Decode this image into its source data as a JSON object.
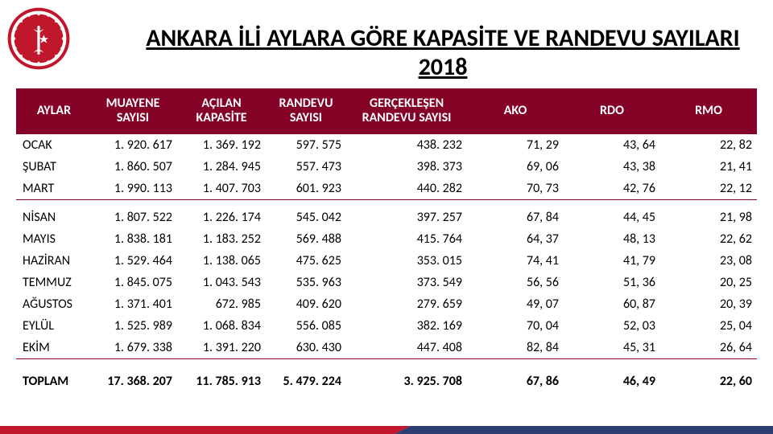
{
  "meta": {
    "title": "ANKARA İLİ AYLARA GÖRE KAPASİTE VE RANDEVU SAYILARI 2018",
    "accent_color": "#840226",
    "bar_left_color": "#c0172d",
    "bar_right_color": "#2d3e73",
    "text_color": "#000000",
    "background_color": "#ffffff",
    "title_fontsize": 30,
    "header_fontsize": 16,
    "cell_fontsize": 16
  },
  "table": {
    "headers": [
      "AYLAR",
      "MUAYENE SAYISI",
      "AÇILAN KAPASİTE",
      "RANDEVU SAYISI",
      "GERÇEKLEŞEN RANDEVU SAYISI",
      "AKO",
      "RDO",
      "RMO"
    ],
    "header_align": [
      "center",
      "center",
      "center",
      "center",
      "center",
      "center",
      "center",
      "center"
    ],
    "col_align": [
      "left",
      "right",
      "right",
      "right",
      "right",
      "right",
      "right",
      "right"
    ],
    "group1": [
      [
        "OCAK",
        "1. 920. 617",
        "1. 369. 192",
        "597. 575",
        "438. 232",
        "71, 29",
        "43, 64",
        "22, 82"
      ],
      [
        "ŞUBAT",
        "1. 860. 507",
        "1. 284. 945",
        "557. 473",
        "398. 373",
        "69, 06",
        "43, 38",
        "21, 41"
      ],
      [
        "MART",
        "1. 990. 113",
        "1. 407. 703",
        "601. 923",
        "440. 282",
        "70, 73",
        "42, 76",
        "22, 12"
      ]
    ],
    "group2": [
      [
        "NİSAN",
        "1. 807. 522",
        "1. 226. 174",
        "545. 042",
        "397. 257",
        "67, 84",
        "44, 45",
        "21, 98"
      ],
      [
        "MAYIS",
        "1. 838. 181",
        "1. 183. 252",
        "569. 488",
        "415. 764",
        "64, 37",
        "48, 13",
        "22, 62"
      ],
      [
        "HAZİRAN",
        "1. 529. 464",
        "1. 138. 065",
        "475. 625",
        "353. 015",
        "74, 41",
        "41, 79",
        "23, 08"
      ],
      [
        "TEMMUZ",
        "1. 845. 075",
        "1. 043. 543",
        "535. 963",
        "373. 549",
        "56, 56",
        "51, 36",
        "20, 25"
      ],
      [
        "AĞUSTOS",
        "1. 371. 401",
        "672. 985",
        "409. 620",
        "279. 659",
        "49, 07",
        "60, 87",
        "20, 39"
      ],
      [
        "EYLÜL",
        "1. 525. 989",
        "1. 068. 834",
        "556. 085",
        "382. 169",
        "70, 04",
        "52, 03",
        "25, 04"
      ],
      [
        "EKİM",
        "1. 679. 338",
        "1. 391. 220",
        "630. 430",
        "447. 408",
        "82, 84",
        "45, 31",
        "26, 64"
      ]
    ],
    "total": [
      "TOPLAM",
      "17. 368. 207",
      "11. 785. 913",
      "5. 479. 224",
      "3. 925. 708",
      "67, 86",
      "46, 49",
      "22, 60"
    ]
  }
}
